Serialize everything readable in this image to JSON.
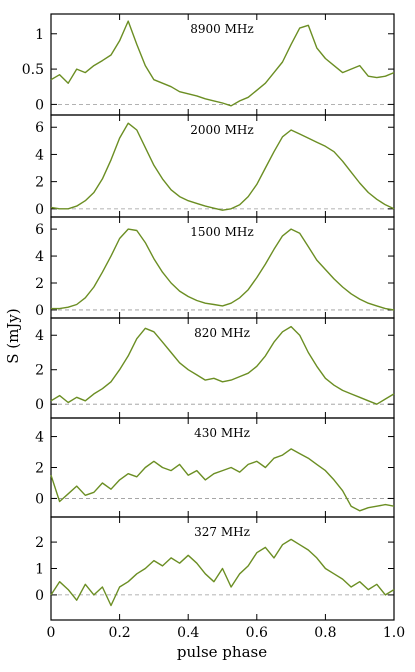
{
  "chart_data": {
    "type": "line",
    "xlabel": "pulse phase",
    "ylabel": "S (mJy)",
    "xlim": [
      0,
      1
    ],
    "x_ticks": [
      "0",
      "0.2",
      "0.4",
      "0.6",
      "0.8",
      "1.0"
    ],
    "line_color": "#6b8e23",
    "zero_line_color": "#999999",
    "panels": [
      {
        "label": "8900 MHz",
        "ylim": [
          -0.15,
          1.28
        ],
        "y_ticks": [
          "0",
          "0.5",
          "1"
        ],
        "y_tick_values": [
          0,
          0.5,
          1
        ],
        "x": [
          0,
          0.025,
          0.05,
          0.075,
          0.1,
          0.125,
          0.15,
          0.175,
          0.2,
          0.225,
          0.25,
          0.275,
          0.3,
          0.325,
          0.35,
          0.375,
          0.4,
          0.425,
          0.45,
          0.475,
          0.5,
          0.525,
          0.55,
          0.575,
          0.6,
          0.625,
          0.65,
          0.675,
          0.7,
          0.725,
          0.75,
          0.775,
          0.8,
          0.825,
          0.85,
          0.875,
          0.9,
          0.925,
          0.95,
          0.975,
          1.0
        ],
        "values": [
          0.35,
          0.42,
          0.3,
          0.5,
          0.45,
          0.55,
          0.62,
          0.7,
          0.9,
          1.18,
          0.85,
          0.55,
          0.35,
          0.3,
          0.25,
          0.18,
          0.15,
          0.12,
          0.08,
          0.05,
          0.02,
          -0.02,
          0.05,
          0.1,
          0.2,
          0.3,
          0.45,
          0.6,
          0.85,
          1.08,
          1.12,
          0.8,
          0.65,
          0.55,
          0.45,
          0.5,
          0.55,
          0.4,
          0.38,
          0.4,
          0.45
        ]
      },
      {
        "label": "2000 MHz",
        "ylim": [
          -0.6,
          6.9
        ],
        "y_ticks": [
          "0",
          "2",
          "4",
          "6"
        ],
        "y_tick_values": [
          0,
          2,
          4,
          6
        ],
        "x": [
          0,
          0.025,
          0.05,
          0.075,
          0.1,
          0.125,
          0.15,
          0.175,
          0.2,
          0.225,
          0.25,
          0.275,
          0.3,
          0.325,
          0.35,
          0.375,
          0.4,
          0.425,
          0.45,
          0.475,
          0.5,
          0.525,
          0.55,
          0.575,
          0.6,
          0.625,
          0.65,
          0.675,
          0.7,
          0.725,
          0.75,
          0.775,
          0.8,
          0.825,
          0.85,
          0.875,
          0.9,
          0.925,
          0.95,
          0.975,
          1.0
        ],
        "values": [
          0.1,
          0.0,
          0.0,
          0.2,
          0.6,
          1.2,
          2.2,
          3.6,
          5.2,
          6.3,
          5.8,
          4.5,
          3.2,
          2.2,
          1.4,
          0.9,
          0.6,
          0.4,
          0.2,
          0.05,
          -0.1,
          0.0,
          0.3,
          0.9,
          1.8,
          3.0,
          4.2,
          5.3,
          5.8,
          5.5,
          5.2,
          4.9,
          4.6,
          4.2,
          3.5,
          2.7,
          1.9,
          1.2,
          0.7,
          0.3,
          0.0
        ]
      },
      {
        "label": "1500 MHz",
        "ylim": [
          -0.6,
          6.9
        ],
        "y_ticks": [
          "0",
          "2",
          "4",
          "6"
        ],
        "y_tick_values": [
          0,
          2,
          4,
          6
        ],
        "x": [
          0,
          0.025,
          0.05,
          0.075,
          0.1,
          0.125,
          0.15,
          0.175,
          0.2,
          0.225,
          0.25,
          0.275,
          0.3,
          0.325,
          0.35,
          0.375,
          0.4,
          0.425,
          0.45,
          0.475,
          0.5,
          0.525,
          0.55,
          0.575,
          0.6,
          0.625,
          0.65,
          0.675,
          0.7,
          0.725,
          0.75,
          0.775,
          0.8,
          0.825,
          0.85,
          0.875,
          0.9,
          0.925,
          0.95,
          0.975,
          1.0
        ],
        "values": [
          0.1,
          0.1,
          0.2,
          0.4,
          0.9,
          1.7,
          2.8,
          4.0,
          5.3,
          6.0,
          5.9,
          5.0,
          3.8,
          2.8,
          2.0,
          1.4,
          1.0,
          0.7,
          0.5,
          0.4,
          0.3,
          0.5,
          0.9,
          1.5,
          2.4,
          3.4,
          4.5,
          5.5,
          6.0,
          5.7,
          4.7,
          3.7,
          3.0,
          2.3,
          1.7,
          1.2,
          0.8,
          0.5,
          0.3,
          0.1,
          0.0
        ]
      },
      {
        "label": "820 MHz",
        "ylim": [
          -0.8,
          5.0
        ],
        "y_ticks": [
          "0",
          "2",
          "4"
        ],
        "y_tick_values": [
          0,
          2,
          4
        ],
        "x": [
          0,
          0.025,
          0.05,
          0.075,
          0.1,
          0.125,
          0.15,
          0.175,
          0.2,
          0.225,
          0.25,
          0.275,
          0.3,
          0.325,
          0.35,
          0.375,
          0.4,
          0.425,
          0.45,
          0.475,
          0.5,
          0.525,
          0.55,
          0.575,
          0.6,
          0.625,
          0.65,
          0.675,
          0.7,
          0.725,
          0.75,
          0.775,
          0.8,
          0.825,
          0.85,
          0.875,
          0.9,
          0.925,
          0.95,
          0.975,
          1.0
        ],
        "values": [
          0.2,
          0.5,
          0.1,
          0.4,
          0.2,
          0.6,
          0.9,
          1.3,
          2.0,
          2.8,
          3.8,
          4.4,
          4.2,
          3.6,
          3.0,
          2.4,
          2.0,
          1.7,
          1.4,
          1.5,
          1.3,
          1.4,
          1.6,
          1.8,
          2.2,
          2.8,
          3.6,
          4.2,
          4.5,
          4.0,
          3.0,
          2.2,
          1.5,
          1.1,
          0.8,
          0.6,
          0.4,
          0.2,
          0.0,
          0.3,
          0.6
        ]
      },
      {
        "label": "430 MHz",
        "ylim": [
          -1.2,
          5.2
        ],
        "y_ticks": [
          "0",
          "2",
          "4"
        ],
        "y_tick_values": [
          0,
          2,
          4
        ],
        "x": [
          0,
          0.025,
          0.05,
          0.075,
          0.1,
          0.125,
          0.15,
          0.175,
          0.2,
          0.225,
          0.25,
          0.275,
          0.3,
          0.325,
          0.35,
          0.375,
          0.4,
          0.425,
          0.45,
          0.475,
          0.5,
          0.525,
          0.55,
          0.575,
          0.6,
          0.625,
          0.65,
          0.675,
          0.7,
          0.725,
          0.75,
          0.775,
          0.8,
          0.825,
          0.85,
          0.875,
          0.9,
          0.925,
          0.95,
          0.975,
          1.0
        ],
        "values": [
          1.5,
          -0.2,
          0.3,
          0.8,
          0.2,
          0.4,
          1.0,
          0.6,
          1.2,
          1.6,
          1.4,
          2.0,
          2.4,
          2.0,
          1.8,
          2.2,
          1.5,
          1.8,
          1.2,
          1.6,
          1.8,
          2.0,
          1.7,
          2.2,
          2.4,
          2.0,
          2.6,
          2.8,
          3.2,
          2.9,
          2.6,
          2.2,
          1.8,
          1.2,
          0.5,
          -0.5,
          -0.8,
          -0.6,
          -0.5,
          -0.4,
          -0.5
        ]
      },
      {
        "label": "327 MHz",
        "ylim": [
          -0.95,
          2.95
        ],
        "y_ticks": [
          "0",
          "1",
          "2"
        ],
        "y_tick_values": [
          0,
          1,
          2
        ],
        "x": [
          0,
          0.025,
          0.05,
          0.075,
          0.1,
          0.125,
          0.15,
          0.175,
          0.2,
          0.225,
          0.25,
          0.275,
          0.3,
          0.325,
          0.35,
          0.375,
          0.4,
          0.425,
          0.45,
          0.475,
          0.5,
          0.525,
          0.55,
          0.575,
          0.6,
          0.625,
          0.65,
          0.675,
          0.7,
          0.725,
          0.75,
          0.775,
          0.8,
          0.825,
          0.85,
          0.875,
          0.9,
          0.925,
          0.95,
          0.975,
          1.0
        ],
        "values": [
          0.0,
          0.5,
          0.2,
          -0.2,
          0.4,
          0.0,
          0.3,
          -0.4,
          0.3,
          0.5,
          0.8,
          1.0,
          1.3,
          1.1,
          1.4,
          1.2,
          1.5,
          1.2,
          0.8,
          0.5,
          1.0,
          0.3,
          0.8,
          1.1,
          1.6,
          1.8,
          1.4,
          1.9,
          2.1,
          1.9,
          1.7,
          1.4,
          1.0,
          0.8,
          0.6,
          0.3,
          0.5,
          0.2,
          0.4,
          0.0,
          0.2
        ]
      }
    ]
  }
}
